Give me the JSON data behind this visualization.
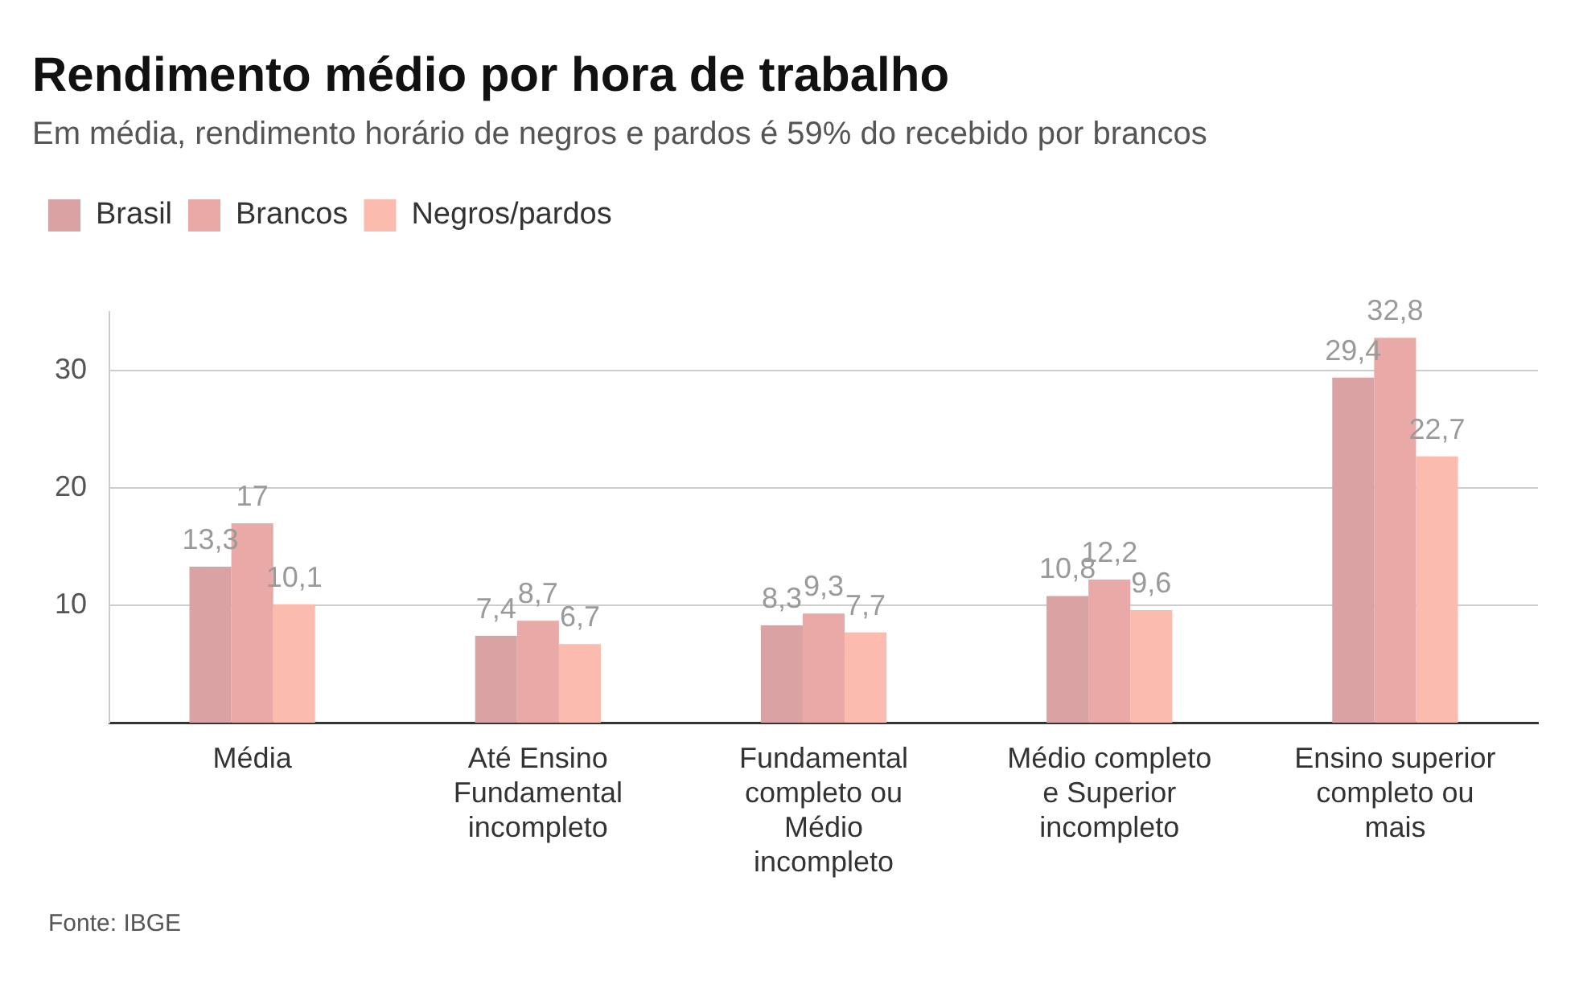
{
  "chart_data": {
    "type": "bar",
    "title": "Rendimento médio por hora de trabalho",
    "subtitle": "Em média, rendimento horário de negros e pardos é 59% do recebido por brancos",
    "categories": [
      "Média",
      "Até Ensino Fundamental incompleto",
      "Fundamental completo ou Médio incompleto",
      "Médio completo e Superior incompleto",
      "Ensino superior completo ou mais"
    ],
    "series": [
      {
        "name": "Brasil",
        "color": "#d9a3a3",
        "values": [
          13.3,
          7.4,
          8.3,
          10.8,
          29.4
        ],
        "value_labels": [
          "13,3",
          "7,4",
          "8,3",
          "10,8",
          "29,4"
        ]
      },
      {
        "name": "Brancos",
        "color": "#e8a9a7",
        "values": [
          17,
          8.7,
          9.3,
          12.2,
          32.8
        ],
        "value_labels": [
          "17",
          "8,7",
          "9,3",
          "12,2",
          "32,8"
        ]
      },
      {
        "name": "Negros/pardos",
        "color": "#fbbcaf",
        "values": [
          10.1,
          6.7,
          7.7,
          9.6,
          22.7
        ],
        "value_labels": [
          "10,1",
          "6,7",
          "7,7",
          "9,6",
          "22,7"
        ]
      }
    ],
    "ylim": [
      0,
      35
    ],
    "yticks": [
      10,
      20,
      30
    ],
    "grid": "y",
    "legend": "top left",
    "annotations": [
      "Fonte: IBGE"
    ]
  }
}
